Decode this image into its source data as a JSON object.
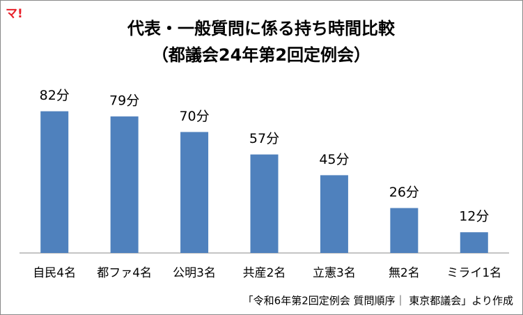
{
  "logo": "マ!",
  "chart_data": {
    "type": "bar",
    "title": "代表・一般質問に係る持ち時間比較",
    "subtitle": "（都議会24年第2回定例会）",
    "categories": [
      "自民4名",
      "都ファ4名",
      "公明3名",
      "共産2名",
      "立憲3名",
      "無2名",
      "ミライ1名"
    ],
    "values": [
      82,
      79,
      70,
      57,
      45,
      26,
      12
    ],
    "value_labels": [
      "82分",
      "79分",
      "70分",
      "57分",
      "45分",
      "26分",
      "12分"
    ],
    "color": "#4f81bd",
    "source": "「令和6年第2回定例会 質問順序｜ 東京都議会」より作成"
  }
}
